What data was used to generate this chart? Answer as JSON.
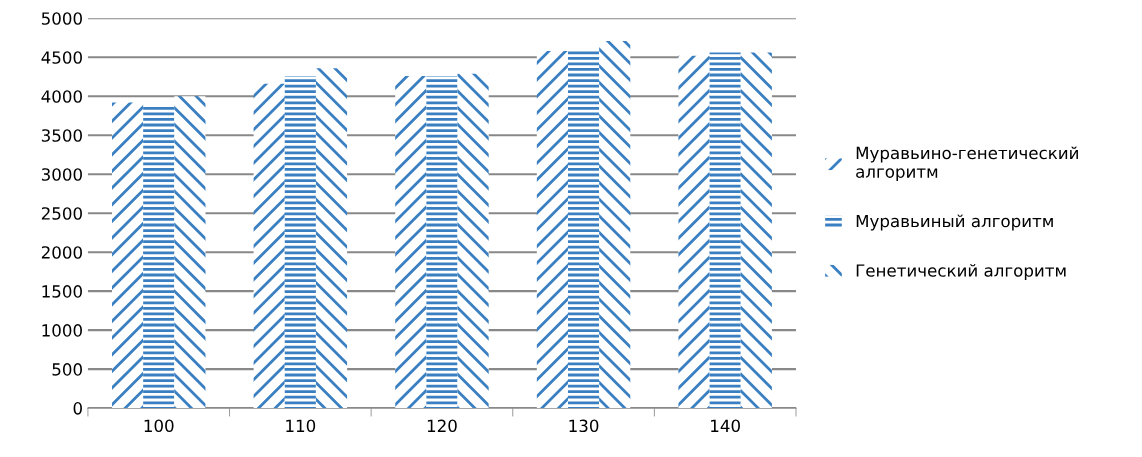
{
  "chart_data": {
    "type": "bar",
    "categories": [
      "100",
      "110",
      "120",
      "130",
      "140"
    ],
    "series": [
      {
        "name": "Муравьино-генетический алгоритм",
        "color": "#3a7fc1",
        "values": [
          3920,
          4160,
          4260,
          4580,
          4520
        ]
      },
      {
        "name": "Муравьиный алгоритм",
        "color": "#3a7fc1",
        "values": [
          3870,
          4260,
          4260,
          4600,
          4560
        ]
      },
      {
        "name": "Генетический алгоритм",
        "color": "#3a7fc1",
        "values": [
          4000,
          4360,
          4290,
          4710,
          4560
        ]
      }
    ],
    "ylim": [
      0,
      5000
    ],
    "yticks": [
      0,
      500,
      1000,
      1500,
      2000,
      2500,
      3000,
      3500,
      4000,
      4500,
      5000
    ],
    "grid": "y",
    "legend": "right"
  }
}
